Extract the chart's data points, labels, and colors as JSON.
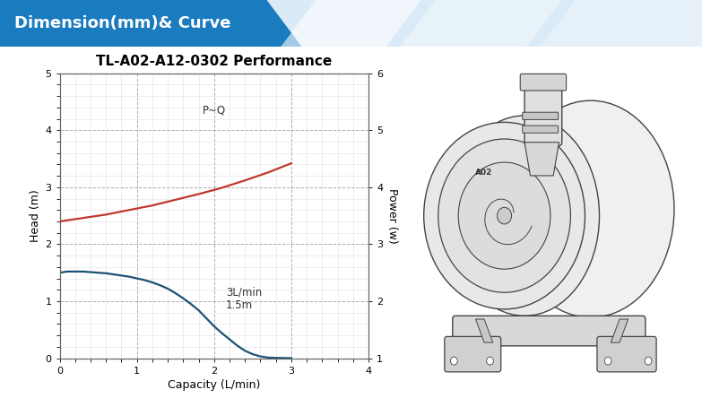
{
  "title": "TL-A02-A12-0302 Performance",
  "xlabel": "Capacity (L/min)",
  "ylabel_left": "Head (m)",
  "ylabel_right": "Power (w)",
  "xlim": [
    0,
    4
  ],
  "ylim_left": [
    0,
    5
  ],
  "ylim_right": [
    1,
    6
  ],
  "xticks": [
    0,
    1,
    2,
    3,
    4
  ],
  "yticks_left": [
    0,
    1,
    2,
    3,
    4,
    5
  ],
  "yticks_right": [
    1,
    2,
    3,
    4,
    5,
    6
  ],
  "hq_x": [
    0.0,
    0.1,
    0.2,
    0.3,
    0.4,
    0.5,
    0.6,
    0.7,
    0.8,
    0.9,
    1.0,
    1.1,
    1.2,
    1.3,
    1.4,
    1.5,
    1.6,
    1.7,
    1.8,
    1.9,
    2.0,
    2.1,
    2.2,
    2.3,
    2.4,
    2.5,
    2.6,
    2.7,
    2.8,
    2.9,
    3.0
  ],
  "hq_y": [
    1.5,
    1.52,
    1.52,
    1.52,
    1.51,
    1.5,
    1.49,
    1.47,
    1.45,
    1.43,
    1.4,
    1.37,
    1.33,
    1.28,
    1.22,
    1.14,
    1.05,
    0.95,
    0.84,
    0.7,
    0.56,
    0.44,
    0.33,
    0.22,
    0.13,
    0.07,
    0.03,
    0.01,
    0.005,
    0.002,
    0.0
  ],
  "pq_x": [
    0.0,
    0.3,
    0.6,
    0.9,
    1.2,
    1.5,
    1.8,
    2.1,
    2.4,
    2.7,
    3.0
  ],
  "pq_y": [
    3.4,
    3.46,
    3.52,
    3.6,
    3.68,
    3.78,
    3.88,
    3.99,
    4.12,
    4.26,
    4.42
  ],
  "hq_color": "#1a5276",
  "pq_color": "#c0392b",
  "hq_label_line1": "3L/min",
  "hq_label_line2": "1.5m",
  "pq_label": "P~Q",
  "background_color": "#ffffff",
  "grid_major_color": "#999999",
  "grid_minor_color": "#cccccc",
  "header_bg_left": "#1a7bbf",
  "header_bg_right": "#e8f0f8",
  "header_text": "Dimension(mm)& Curve",
  "header_text_color": "#ffffff",
  "page_bg": "#ffffff",
  "title_fontsize": 11,
  "label_fontsize": 9,
  "tick_fontsize": 8,
  "annotation_fontsize": 8.5
}
